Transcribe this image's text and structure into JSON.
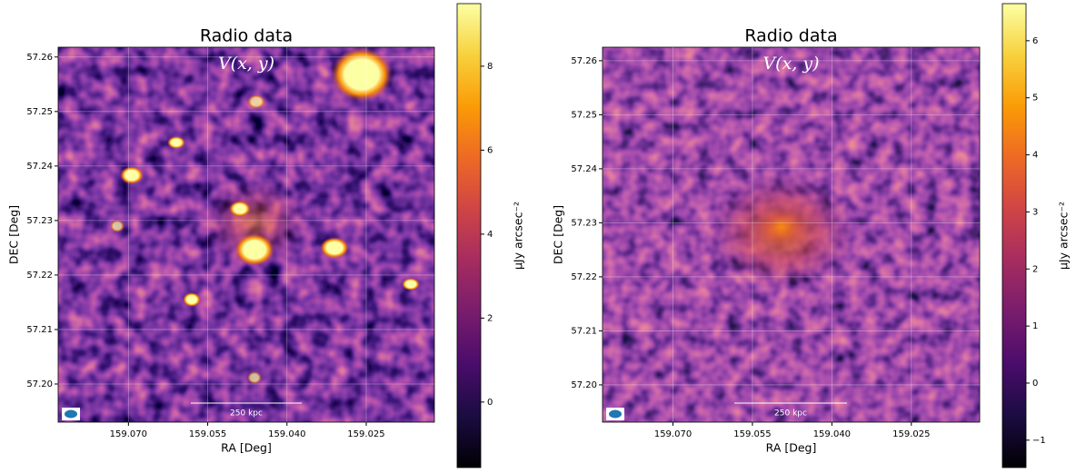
{
  "chart_data": [
    {
      "type": "heatmap",
      "title": "Radio data",
      "annotation": "V(x, y)",
      "xlabel": "RA [Deg]",
      "ylabel": "DEC [Deg]",
      "xlim": [
        159.0833,
        159.0121
      ],
      "ylim": [
        57.193,
        57.2618
      ],
      "xticks": [
        {
          "value": 159.07,
          "label": "159.070"
        },
        159.055,
        {
          "value": 159.04,
          "label": "159.040"
        },
        159.025
      ],
      "yticks": [
        {
          "value": 57.2,
          "label": "57.20"
        },
        57.21,
        57.22,
        57.23,
        57.24,
        57.25,
        57.26
      ],
      "grid": true,
      "colormap": "inferno",
      "scalebar_label": "250 kpc",
      "colorbar": {
        "label": "μJy arcsec⁻²",
        "lim": [
          -1.56,
          9.49
        ],
        "ticks": [
          0,
          2,
          4,
          6,
          8
        ]
      }
    },
    {
      "type": "heatmap",
      "title": "Radio data",
      "annotation": "V(x, y)",
      "xlabel": "RA [Deg]",
      "ylabel": "DEC [Deg]",
      "xlim": [
        159.0833,
        159.0121
      ],
      "ylim": [
        57.1931,
        57.2625
      ],
      "xticks": [
        {
          "value": 159.07,
          "label": "159.070"
        },
        159.055,
        {
          "value": 159.04,
          "label": "159.040"
        },
        159.025
      ],
      "yticks": [
        {
          "value": 57.2,
          "label": "57.20"
        },
        57.21,
        57.22,
        57.23,
        57.24,
        57.25,
        57.26
      ],
      "grid": true,
      "colormap": "inferno",
      "scalebar_label": "250 kpc",
      "colorbar": {
        "label": "μJy arcsec⁻²",
        "lim": [
          -1.48,
          6.65
        ],
        "ticks": [
          {
            "value": -1,
            "label": "−1"
          },
          0,
          1,
          2,
          3,
          4,
          5,
          6
        ]
      }
    }
  ]
}
